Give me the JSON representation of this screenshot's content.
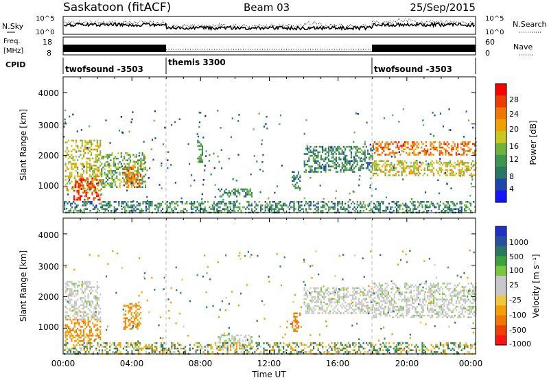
{
  "header": {
    "title": "Saskatoon (fitACF)",
    "beam": "Beam 03",
    "date": "25/Sep/2015"
  },
  "noise_panel": {
    "left_label": "N.Sky",
    "left_ticks": [
      "10^5",
      "10^0"
    ],
    "right_ticks": [
      "10^5",
      "10^0"
    ],
    "right_label": "N.Search"
  },
  "freq_panel": {
    "left_label_1": "Freq.",
    "left_label_2": "[MHz]",
    "left_ticks": [
      "18",
      "8"
    ],
    "right_ticks": [
      "60",
      "0"
    ],
    "right_label": "Nave"
  },
  "cpid": {
    "label": "CPID",
    "segments": [
      {
        "start": 0,
        "end": 6,
        "name": "twofsound -3503"
      },
      {
        "start": 6,
        "end": 18,
        "name": "themis 3300"
      },
      {
        "start": 18,
        "end": 24,
        "name": "twofsound -3503"
      }
    ]
  },
  "time_axis": {
    "label": "Time UT",
    "ticks": [
      "00:00",
      "04:00",
      "08:00",
      "12:00",
      "16:00",
      "20:00",
      "00:00"
    ],
    "range_hours": [
      0,
      24
    ]
  },
  "power_panel": {
    "ylabel": "Slant Range [km]",
    "yticks": [
      "1000",
      "2000",
      "3000",
      "4000"
    ],
    "colorbar_label": "Power [dB]",
    "colorbar_ticks": [
      "4",
      "8",
      "12",
      "16",
      "20",
      "24",
      "28"
    ],
    "colors": [
      "#1414ff",
      "#1e46aa",
      "#287864",
      "#3c9650",
      "#6eb43c",
      "#c8c81e",
      "#f0a000",
      "#f07800",
      "#f03c00",
      "#ff0000"
    ]
  },
  "velocity_panel": {
    "ylabel": "Slant Range [km]",
    "yticks": [
      "1000",
      "2000",
      "3000",
      "4000"
    ],
    "colorbar_label": "Velocity [m s⁻¹]",
    "colorbar_ticks": [
      "1000",
      "500",
      "100",
      "25",
      "-25",
      "-100",
      "-500",
      "-1000"
    ],
    "colors": [
      "#1e32c8",
      "#2850a0",
      "#287864",
      "#3ca03c",
      "#78c83c",
      "#c8c8c8",
      "#c8c8c8",
      "#f0c83c",
      "#f0a000",
      "#f07800",
      "#f04000",
      "#ff1414"
    ]
  },
  "chart_data": {
    "type": "heatmap",
    "x_range_hours": [
      0,
      24
    ],
    "y_range_km": [
      180,
      4500
    ],
    "mode_changes_hours": [
      6,
      18
    ],
    "power_regions": [
      {
        "t0": 0.1,
        "t1": 2.2,
        "r0": 900,
        "r1": 2500,
        "p": 18
      },
      {
        "t0": 0.6,
        "t1": 2.2,
        "r0": 600,
        "r1": 1300,
        "p": 28
      },
      {
        "t0": 2.2,
        "t1": 4.8,
        "r0": 1000,
        "r1": 2100,
        "p": 14
      },
      {
        "t0": 3.5,
        "t1": 4.5,
        "r0": 1000,
        "r1": 1700,
        "p": 24
      },
      {
        "t0": 7.8,
        "t1": 8.1,
        "r0": 1800,
        "r1": 2500,
        "p": 12
      },
      {
        "t0": 9.0,
        "t1": 11.0,
        "r0": 700,
        "r1": 950,
        "p": 10
      },
      {
        "t0": 13.3,
        "t1": 13.8,
        "r0": 900,
        "r1": 1500,
        "p": 10
      },
      {
        "t0": 14.0,
        "t1": 18.0,
        "r0": 1500,
        "r1": 2300,
        "p": 10
      },
      {
        "t0": 18.0,
        "t1": 24.0,
        "r0": 2050,
        "r1": 2450,
        "p": 24
      },
      {
        "t0": 18.0,
        "t1": 24.0,
        "r0": 1350,
        "r1": 1850,
        "p": 18
      }
    ],
    "velocity_regions": [
      {
        "t0": 0.1,
        "t1": 2.2,
        "r0": 600,
        "r1": 1300,
        "v": -300
      },
      {
        "t0": 0.1,
        "t1": 2.2,
        "r0": 1300,
        "r1": 2500,
        "v": 0
      },
      {
        "t0": 3.5,
        "t1": 4.5,
        "r0": 1000,
        "r1": 1800,
        "v": -300
      },
      {
        "t0": 9.0,
        "t1": 11.0,
        "r0": 300,
        "r1": 800,
        "v": 0
      },
      {
        "t0": 13.3,
        "t1": 13.8,
        "r0": 900,
        "r1": 1500,
        "v": -400
      },
      {
        "t0": 14.0,
        "t1": 18.0,
        "r0": 1500,
        "r1": 2300,
        "v": 0
      },
      {
        "t0": 18.0,
        "t1": 24.0,
        "r0": 1350,
        "r1": 2450,
        "v": 0
      }
    ]
  }
}
